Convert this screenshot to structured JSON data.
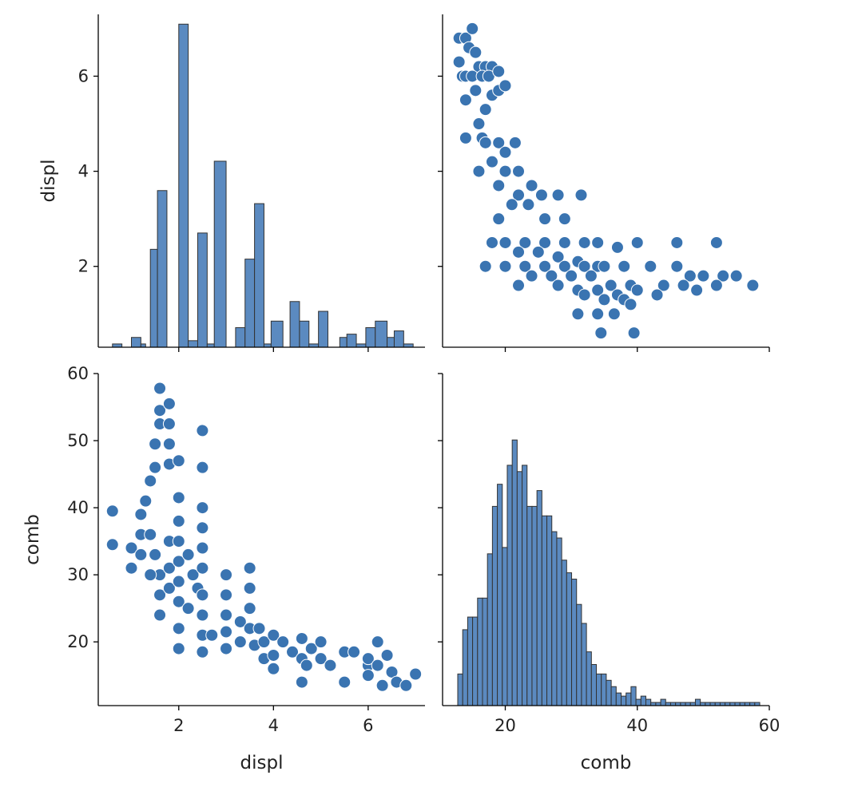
{
  "chart_data": {
    "type": "pairplot",
    "variables": [
      "displ",
      "comb"
    ],
    "color": "#3a74b1",
    "bar_color": "#5b8ac0",
    "panels": [
      {
        "id": "displ_hist",
        "row": 0,
        "col": 0,
        "type": "bar",
        "xlim": [
          0.3,
          7.2
        ],
        "ylabel": "displ",
        "ylim": [
          0.3,
          7.3
        ],
        "yticks": [
          "2",
          "4",
          "6"
        ],
        "bins": [
          {
            "x0": 0.6,
            "x1": 0.8,
            "h": 0.01
          },
          {
            "x0": 1.0,
            "x1": 1.2,
            "h": 0.03
          },
          {
            "x0": 1.2,
            "x1": 1.3,
            "h": 0.01
          },
          {
            "x0": 1.4,
            "x1": 1.55,
            "h": 0.3
          },
          {
            "x0": 1.55,
            "x1": 1.75,
            "h": 0.48
          },
          {
            "x0": 2.0,
            "x1": 2.2,
            "h": 0.99
          },
          {
            "x0": 2.2,
            "x1": 2.4,
            "h": 0.02
          },
          {
            "x0": 2.4,
            "x1": 2.6,
            "h": 0.35
          },
          {
            "x0": 2.6,
            "x1": 2.75,
            "h": 0.01
          },
          {
            "x0": 2.75,
            "x1": 3.0,
            "h": 0.57
          },
          {
            "x0": 3.2,
            "x1": 3.4,
            "h": 0.06
          },
          {
            "x0": 3.4,
            "x1": 3.6,
            "h": 0.27
          },
          {
            "x0": 3.6,
            "x1": 3.8,
            "h": 0.44
          },
          {
            "x0": 3.8,
            "x1": 3.95,
            "h": 0.01
          },
          {
            "x0": 3.95,
            "x1": 4.2,
            "h": 0.08
          },
          {
            "x0": 4.35,
            "x1": 4.55,
            "h": 0.14
          },
          {
            "x0": 4.55,
            "x1": 4.75,
            "h": 0.08
          },
          {
            "x0": 4.75,
            "x1": 4.95,
            "h": 0.01
          },
          {
            "x0": 4.95,
            "x1": 5.15,
            "h": 0.11
          },
          {
            "x0": 5.4,
            "x1": 5.55,
            "h": 0.03
          },
          {
            "x0": 5.55,
            "x1": 5.75,
            "h": 0.04
          },
          {
            "x0": 5.75,
            "x1": 5.95,
            "h": 0.01
          },
          {
            "x0": 5.95,
            "x1": 6.15,
            "h": 0.06
          },
          {
            "x0": 6.15,
            "x1": 6.4,
            "h": 0.08
          },
          {
            "x0": 6.4,
            "x1": 6.55,
            "h": 0.03
          },
          {
            "x0": 6.55,
            "x1": 6.75,
            "h": 0.05
          },
          {
            "x0": 6.75,
            "x1": 6.95,
            "h": 0.01
          }
        ]
      },
      {
        "id": "comb_vs_displ_top",
        "row": 0,
        "col": 1,
        "type": "scatter",
        "x_var": "comb",
        "y_var": "displ",
        "xlim": [
          10.5,
          60
        ],
        "ylim": [
          0.3,
          7.3
        ],
        "points": [
          [
            13.0,
            6.8
          ],
          [
            14.0,
            6.8
          ],
          [
            15.0,
            7.0
          ],
          [
            14.5,
            6.6
          ],
          [
            15.5,
            6.5
          ],
          [
            16.0,
            6.2
          ],
          [
            17.0,
            6.2
          ],
          [
            18.0,
            6.2
          ],
          [
            13.0,
            6.3
          ],
          [
            13.5,
            6.0
          ],
          [
            14.0,
            6.0
          ],
          [
            15.0,
            6.0
          ],
          [
            15.5,
            5.7
          ],
          [
            16.5,
            6.0
          ],
          [
            17.5,
            6.0
          ],
          [
            19.0,
            6.1
          ],
          [
            14.0,
            5.5
          ],
          [
            16.0,
            5.0
          ],
          [
            17.0,
            5.3
          ],
          [
            18.0,
            5.6
          ],
          [
            19.0,
            5.7
          ],
          [
            20.0,
            5.8
          ],
          [
            16.5,
            4.7
          ],
          [
            14.0,
            4.7
          ],
          [
            17.0,
            4.6
          ],
          [
            19.0,
            4.6
          ],
          [
            20.0,
            4.4
          ],
          [
            21.5,
            4.6
          ],
          [
            18.0,
            4.2
          ],
          [
            20.0,
            4.0
          ],
          [
            22.0,
            4.0
          ],
          [
            24.0,
            3.7
          ],
          [
            16.0,
            4.0
          ],
          [
            19.0,
            3.7
          ],
          [
            22.0,
            3.5
          ],
          [
            25.5,
            3.5
          ],
          [
            28.0,
            3.5
          ],
          [
            31.5,
            3.5
          ],
          [
            21.0,
            3.3
          ],
          [
            23.5,
            3.3
          ],
          [
            26.0,
            3.0
          ],
          [
            29.0,
            3.0
          ],
          [
            19.0,
            3.0
          ],
          [
            18.0,
            2.5
          ],
          [
            20.0,
            2.5
          ],
          [
            23.0,
            2.5
          ],
          [
            26.0,
            2.5
          ],
          [
            29.0,
            2.5
          ],
          [
            32.0,
            2.5
          ],
          [
            34.0,
            2.5
          ],
          [
            37.0,
            2.4
          ],
          [
            40.0,
            2.5
          ],
          [
            46.0,
            2.5
          ],
          [
            52.0,
            2.5
          ],
          [
            22.0,
            2.3
          ],
          [
            25.0,
            2.3
          ],
          [
            28.0,
            2.2
          ],
          [
            31.0,
            2.1
          ],
          [
            34.0,
            2.0
          ],
          [
            20.0,
            2.0
          ],
          [
            23.0,
            2.0
          ],
          [
            26.0,
            2.0
          ],
          [
            29.0,
            2.0
          ],
          [
            32.0,
            2.0
          ],
          [
            35.0,
            2.0
          ],
          [
            38.0,
            2.0
          ],
          [
            42.0,
            2.0
          ],
          [
            46.0,
            2.0
          ],
          [
            17.0,
            2.0
          ],
          [
            22.0,
            1.6
          ],
          [
            24.0,
            1.8
          ],
          [
            27.0,
            1.8
          ],
          [
            30.0,
            1.8
          ],
          [
            33.0,
            1.8
          ],
          [
            36.0,
            1.6
          ],
          [
            39.0,
            1.6
          ],
          [
            44.0,
            1.6
          ],
          [
            48.0,
            1.8
          ],
          [
            50.0,
            1.8
          ],
          [
            53.0,
            1.8
          ],
          [
            55.0,
            1.8
          ],
          [
            57.5,
            1.6
          ],
          [
            28.0,
            1.6
          ],
          [
            31.0,
            1.5
          ],
          [
            34.0,
            1.5
          ],
          [
            37.0,
            1.4
          ],
          [
            40.0,
            1.5
          ],
          [
            43.0,
            1.4
          ],
          [
            47.0,
            1.6
          ],
          [
            32.0,
            1.4
          ],
          [
            35.0,
            1.3
          ],
          [
            38.0,
            1.3
          ],
          [
            31.0,
            1.0
          ],
          [
            34.0,
            1.0
          ],
          [
            36.5,
            1.0
          ],
          [
            39.0,
            1.2
          ],
          [
            34.5,
            0.6
          ],
          [
            39.5,
            0.6
          ],
          [
            49.0,
            1.5
          ],
          [
            52.0,
            1.6
          ]
        ]
      },
      {
        "id": "displ_vs_comb_bottom",
        "row": 1,
        "col": 0,
        "type": "scatter",
        "x_var": "displ",
        "y_var": "comb",
        "xlim": [
          0.3,
          7.2
        ],
        "xlabel": "displ",
        "xticks": [
          "2",
          "4",
          "6"
        ],
        "ylim": [
          10.5,
          60
        ],
        "ylabel": "comb",
        "yticks": [
          "20",
          "30",
          "40",
          "50",
          "60"
        ],
        "points": [
          [
            0.6,
            39.5
          ],
          [
            0.6,
            34.5
          ],
          [
            1.0,
            34.0
          ],
          [
            1.0,
            31.0
          ],
          [
            1.2,
            39.0
          ],
          [
            1.2,
            36.0
          ],
          [
            1.3,
            41.0
          ],
          [
            1.4,
            44.0
          ],
          [
            1.5,
            46.0
          ],
          [
            1.5,
            49.5
          ],
          [
            1.6,
            52.5
          ],
          [
            1.6,
            54.5
          ],
          [
            1.6,
            57.8
          ],
          [
            1.8,
            55.5
          ],
          [
            1.8,
            52.5
          ],
          [
            1.8,
            49.5
          ],
          [
            1.8,
            46.5
          ],
          [
            2.0,
            47.0
          ],
          [
            2.0,
            41.5
          ],
          [
            2.5,
            51.5
          ],
          [
            2.5,
            46.0
          ],
          [
            1.4,
            36.0
          ],
          [
            1.5,
            33.0
          ],
          [
            1.6,
            30.0
          ],
          [
            1.6,
            27.0
          ],
          [
            1.6,
            24.0
          ],
          [
            1.8,
            35.0
          ],
          [
            1.8,
            31.0
          ],
          [
            1.8,
            28.0
          ],
          [
            2.0,
            38.0
          ],
          [
            2.0,
            35.0
          ],
          [
            2.0,
            32.0
          ],
          [
            2.0,
            29.0
          ],
          [
            2.0,
            26.0
          ],
          [
            2.0,
            22.0
          ],
          [
            2.0,
            19.0
          ],
          [
            2.2,
            33.0
          ],
          [
            2.3,
            30.0
          ],
          [
            2.4,
            28.0
          ],
          [
            2.5,
            40.0
          ],
          [
            2.5,
            37.0
          ],
          [
            2.5,
            34.0
          ],
          [
            2.5,
            31.0
          ],
          [
            2.5,
            27.0
          ],
          [
            2.5,
            24.0
          ],
          [
            2.5,
            21.0
          ],
          [
            2.5,
            18.5
          ],
          [
            2.7,
            21.0
          ],
          [
            3.0,
            30.0
          ],
          [
            3.0,
            27.0
          ],
          [
            3.0,
            24.0
          ],
          [
            3.0,
            21.5
          ],
          [
            3.0,
            19.0
          ],
          [
            3.3,
            23.0
          ],
          [
            3.3,
            20.0
          ],
          [
            3.5,
            31.0
          ],
          [
            3.5,
            28.0
          ],
          [
            3.5,
            25.0
          ],
          [
            3.5,
            22.0
          ],
          [
            3.6,
            19.5
          ],
          [
            3.7,
            22.0
          ],
          [
            3.8,
            20.0
          ],
          [
            3.8,
            17.5
          ],
          [
            4.0,
            21.0
          ],
          [
            4.0,
            18.0
          ],
          [
            4.0,
            16.0
          ],
          [
            4.2,
            20.0
          ],
          [
            4.4,
            18.5
          ],
          [
            4.6,
            17.5
          ],
          [
            4.6,
            20.5
          ],
          [
            4.7,
            16.5
          ],
          [
            4.8,
            19.0
          ],
          [
            4.6,
            14.0
          ],
          [
            5.0,
            20.0
          ],
          [
            5.0,
            17.5
          ],
          [
            5.2,
            16.5
          ],
          [
            5.5,
            18.5
          ],
          [
            5.5,
            14.0
          ],
          [
            5.7,
            18.5
          ],
          [
            6.0,
            16.5
          ],
          [
            6.0,
            15.0
          ],
          [
            6.0,
            17.5
          ],
          [
            6.2,
            20.0
          ],
          [
            6.2,
            16.5
          ],
          [
            6.3,
            13.5
          ],
          [
            6.4,
            18.0
          ],
          [
            6.5,
            15.5
          ],
          [
            6.6,
            14.0
          ],
          [
            6.8,
            13.5
          ],
          [
            7.0,
            15.2
          ],
          [
            2.2,
            25.0
          ],
          [
            1.4,
            30.0
          ],
          [
            1.2,
            33.0
          ]
        ]
      },
      {
        "id": "comb_hist",
        "row": 1,
        "col": 1,
        "type": "bar",
        "xlim": [
          10.5,
          60
        ],
        "xlabel": "comb",
        "xticks": [
          "20",
          "40",
          "60"
        ],
        "bin_start": 12.8,
        "bin_width": 0.75,
        "counts": [
          0.1,
          0.24,
          0.28,
          0.28,
          0.34,
          0.34,
          0.48,
          0.63,
          0.7,
          0.5,
          0.76,
          0.84,
          0.74,
          0.76,
          0.63,
          0.63,
          0.68,
          0.6,
          0.6,
          0.55,
          0.53,
          0.46,
          0.42,
          0.4,
          0.32,
          0.26,
          0.17,
          0.13,
          0.1,
          0.1,
          0.08,
          0.06,
          0.04,
          0.03,
          0.04,
          0.06,
          0.02,
          0.03,
          0.02,
          0.01,
          0.01,
          0.02,
          0.01,
          0.01,
          0.01,
          0.01,
          0.01,
          0.01,
          0.02,
          0.01,
          0.01,
          0.01,
          0.01,
          0.01,
          0.01,
          0.01,
          0.01,
          0.01,
          0.01,
          0.01,
          0.01
        ],
        "ylim": [
          0,
          1.05
        ]
      }
    ]
  }
}
